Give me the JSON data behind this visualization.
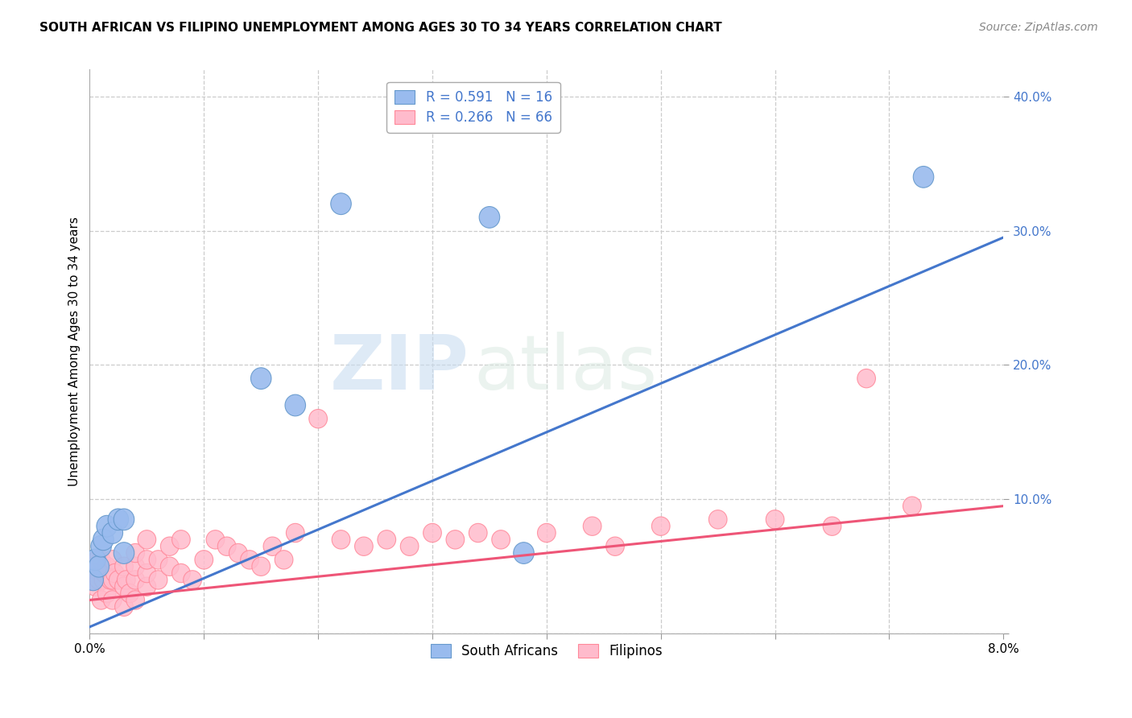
{
  "title": "SOUTH AFRICAN VS FILIPINO UNEMPLOYMENT AMONG AGES 30 TO 34 YEARS CORRELATION CHART",
  "source": "Source: ZipAtlas.com",
  "ylabel": "Unemployment Among Ages 30 to 34 years",
  "xlim": [
    0.0,
    0.08
  ],
  "ylim": [
    0.0,
    0.42
  ],
  "ytick_positions": [
    0.0,
    0.1,
    0.2,
    0.3,
    0.4
  ],
  "ytick_labels": [
    "",
    "10.0%",
    "20.0%",
    "30.0%",
    "40.0%"
  ],
  "blue_color": "#99BBEE",
  "blue_edge_color": "#6699CC",
  "pink_color": "#FFBBCC",
  "pink_edge_color": "#FF8899",
  "blue_line_color": "#4477CC",
  "pink_line_color": "#EE5577",
  "legend_label_blue": "South Africans",
  "legend_label_pink": "Filipinos",
  "watermark_zip": "ZIP",
  "watermark_atlas": "atlas",
  "grid_color": "#CCCCCC",
  "sa_x": [
    0.0003,
    0.0005,
    0.0008,
    0.001,
    0.0012,
    0.0015,
    0.002,
    0.0025,
    0.003,
    0.003,
    0.015,
    0.018,
    0.022,
    0.035,
    0.038,
    0.073
  ],
  "sa_y": [
    0.04,
    0.055,
    0.05,
    0.065,
    0.07,
    0.08,
    0.075,
    0.085,
    0.085,
    0.06,
    0.19,
    0.17,
    0.32,
    0.31,
    0.06,
    0.34
  ],
  "fil_x": [
    0.0002,
    0.0003,
    0.0004,
    0.0005,
    0.0006,
    0.0007,
    0.0008,
    0.001,
    0.001,
    0.0012,
    0.0013,
    0.0015,
    0.0015,
    0.0018,
    0.002,
    0.002,
    0.002,
    0.0022,
    0.0025,
    0.003,
    0.003,
    0.003,
    0.0032,
    0.0035,
    0.004,
    0.004,
    0.004,
    0.004,
    0.005,
    0.005,
    0.005,
    0.005,
    0.006,
    0.006,
    0.007,
    0.007,
    0.008,
    0.008,
    0.009,
    0.01,
    0.011,
    0.012,
    0.013,
    0.014,
    0.015,
    0.016,
    0.017,
    0.018,
    0.02,
    0.022,
    0.024,
    0.026,
    0.028,
    0.03,
    0.032,
    0.034,
    0.036,
    0.04,
    0.044,
    0.046,
    0.05,
    0.055,
    0.06,
    0.065,
    0.068,
    0.072
  ],
  "fil_y": [
    0.04,
    0.05,
    0.045,
    0.035,
    0.05,
    0.055,
    0.04,
    0.025,
    0.055,
    0.04,
    0.045,
    0.03,
    0.05,
    0.04,
    0.025,
    0.04,
    0.055,
    0.045,
    0.04,
    0.02,
    0.035,
    0.05,
    0.04,
    0.03,
    0.025,
    0.04,
    0.05,
    0.06,
    0.035,
    0.045,
    0.055,
    0.07,
    0.04,
    0.055,
    0.05,
    0.065,
    0.045,
    0.07,
    0.04,
    0.055,
    0.07,
    0.065,
    0.06,
    0.055,
    0.05,
    0.065,
    0.055,
    0.075,
    0.16,
    0.07,
    0.065,
    0.07,
    0.065,
    0.075,
    0.07,
    0.075,
    0.07,
    0.075,
    0.08,
    0.065,
    0.08,
    0.085,
    0.085,
    0.08,
    0.19,
    0.095
  ]
}
